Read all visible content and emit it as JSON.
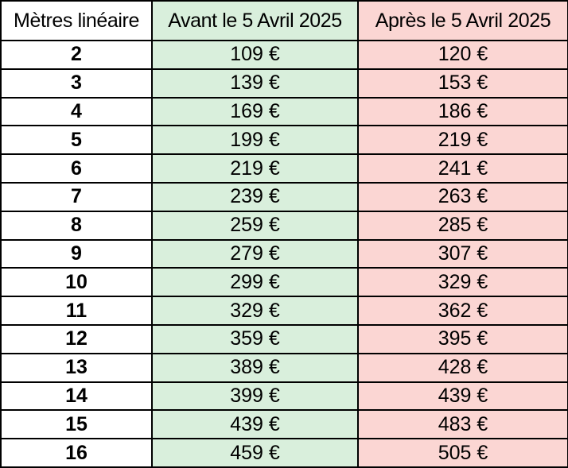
{
  "table": {
    "headers": [
      "Mètres linéaire",
      "Avant le 5 Avril 2025",
      "Après le 5 Avril 2025"
    ],
    "rows": [
      [
        "2",
        "109 €",
        "120 €"
      ],
      [
        "3",
        "139 €",
        "153 €"
      ],
      [
        "4",
        "169 €",
        "186 €"
      ],
      [
        "5",
        "199 €",
        "219 €"
      ],
      [
        "6",
        "219 €",
        "241 €"
      ],
      [
        "7",
        "239 €",
        "263 €"
      ],
      [
        "8",
        "259 €",
        "285 €"
      ],
      [
        "9",
        "279 €",
        "307 €"
      ],
      [
        "10",
        "299 €",
        "329 €"
      ],
      [
        "11",
        "329 €",
        "362 €"
      ],
      [
        "12",
        "359 €",
        "395 €"
      ],
      [
        "13",
        "389 €",
        "428 €"
      ],
      [
        "14",
        "399 €",
        "439 €"
      ],
      [
        "15",
        "439 €",
        "483 €"
      ],
      [
        "16",
        "459 €",
        "505 €"
      ]
    ]
  },
  "colors": {
    "before_column": "#d9efdc",
    "after_column": "#fbd6d3",
    "border": "#000000"
  }
}
